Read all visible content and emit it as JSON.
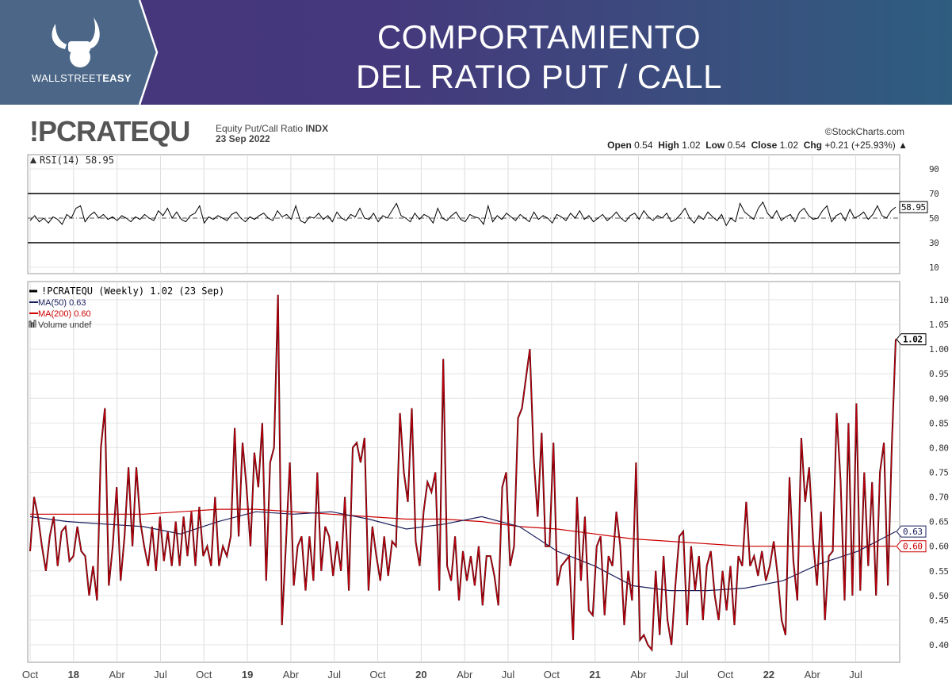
{
  "header": {
    "logo_text_light": "WALLSTREET",
    "logo_text_bold": "EASY",
    "title_line1": "COMPORTAMIENTO",
    "title_line2": "DEL RATIO PUT / CALL"
  },
  "chart_info": {
    "symbol": "!PCRATEQU",
    "description": "Equity Put/Call Ratio",
    "exchange": "INDX",
    "date": "23 Sep 2022",
    "copyright": "©StockCharts.com",
    "open_label": "Open",
    "open": "0.54",
    "high_label": "High",
    "high": "1.02",
    "low_label": "Low",
    "low": "0.54",
    "close_label": "Close",
    "close": "1.02",
    "chg_label": "Chg",
    "chg": "+0.21 (+25.93%)"
  },
  "colors": {
    "price": "#000000",
    "ma50": "#1a1f5c",
    "ma200": "#cc0000",
    "header_left": "#4b6687"
  },
  "chart_data": [
    {
      "type": "line",
      "title": "RSI(14) 58.95",
      "legend": "RSI(14) 58.95",
      "ylim": [
        0,
        100
      ],
      "yticks": [
        10,
        30,
        50,
        70,
        90
      ],
      "reference_lines": [
        30,
        50,
        70
      ],
      "last_value_label": "58.95",
      "last_value": 58.95,
      "values": [
        48,
        52,
        47,
        50,
        46,
        51,
        49,
        45,
        53,
        50,
        58,
        60,
        47,
        52,
        55,
        50,
        53,
        49,
        51,
        48,
        52,
        50,
        47,
        51,
        49,
        53,
        50,
        48,
        56,
        52,
        58,
        50,
        55,
        49,
        47,
        52,
        54,
        60,
        46,
        51,
        49,
        52,
        50,
        48,
        53,
        55,
        50,
        47,
        51,
        49,
        52,
        54,
        50,
        48,
        56,
        51,
        53,
        49,
        60,
        48,
        46,
        51,
        50,
        54,
        49,
        52,
        47,
        55,
        50,
        48,
        53,
        51,
        58,
        50,
        49,
        54,
        47,
        52,
        50,
        56,
        62,
        52,
        50,
        47,
        54,
        49,
        53,
        51,
        46,
        58,
        50,
        48,
        52,
        55,
        49,
        47,
        53,
        51,
        50,
        45,
        60,
        47,
        52,
        49,
        54,
        51,
        48,
        53,
        50,
        47,
        55,
        49,
        52,
        50,
        46,
        53,
        51,
        48,
        54,
        50,
        56,
        49,
        52,
        47,
        50,
        53,
        48,
        51,
        55,
        50,
        47,
        52,
        54,
        49,
        56,
        51,
        48,
        52,
        50,
        54,
        47,
        49,
        53,
        58,
        50,
        46,
        52,
        49,
        55,
        51,
        48,
        53,
        44,
        50,
        47,
        62,
        55,
        52,
        49,
        58,
        63,
        54,
        50,
        56,
        48,
        51,
        53,
        47,
        55,
        58,
        52,
        49,
        50,
        56,
        60,
        47,
        52,
        54,
        48,
        57,
        50,
        52,
        55,
        49,
        53,
        60,
        52,
        50,
        56,
        58.95
      ]
    },
    {
      "type": "line",
      "title": "!PCRATEQU (Weekly) 1.02 (23 Sep)",
      "legend": [
        "!PCRATEQU (Weekly) 1.02 (23 Sep)",
        "MA(50) 0.63",
        "MA(200) 0.60",
        "Volume undef"
      ],
      "ylim": [
        0.38,
        1.13
      ],
      "yticks": [
        "0.40",
        "0.45",
        "0.50",
        "0.55",
        "0.60",
        "0.65",
        "0.70",
        "0.75",
        "0.80",
        "0.85",
        "0.90",
        "0.95",
        "1.00",
        "1.05",
        "1.10"
      ],
      "x_range": [
        "Oct 2017",
        "Sep 2022"
      ],
      "xticks": [
        {
          "label": "Oct",
          "t": 0,
          "bold": false
        },
        {
          "label": "18",
          "t": 0.25,
          "bold": true
        },
        {
          "label": "Abr",
          "t": 0.5,
          "bold": false
        },
        {
          "label": "Jul",
          "t": 0.75,
          "bold": false
        },
        {
          "label": "Oct",
          "t": 1.0,
          "bold": false
        },
        {
          "label": "19",
          "t": 1.25,
          "bold": true
        },
        {
          "label": "Abr",
          "t": 1.5,
          "bold": false
        },
        {
          "label": "Jul",
          "t": 1.75,
          "bold": false
        },
        {
          "label": "Oct",
          "t": 2.0,
          "bold": false
        },
        {
          "label": "20",
          "t": 2.25,
          "bold": true
        },
        {
          "label": "Abr",
          "t": 2.5,
          "bold": false
        },
        {
          "label": "Jul",
          "t": 2.75,
          "bold": false
        },
        {
          "label": "Oct",
          "t": 3.0,
          "bold": false
        },
        {
          "label": "21",
          "t": 3.25,
          "bold": true
        },
        {
          "label": "Abr",
          "t": 3.5,
          "bold": false
        },
        {
          "label": "Jul",
          "t": 3.75,
          "bold": false
        },
        {
          "label": "Oct",
          "t": 4.0,
          "bold": false
        },
        {
          "label": "22",
          "t": 4.25,
          "bold": true
        },
        {
          "label": "Abr",
          "t": 4.5,
          "bold": false
        },
        {
          "label": "Jul",
          "t": 4.75,
          "bold": false
        }
      ],
      "x_span_years": 4.98,
      "last_labels": {
        "price": "1.02",
        "ma50": "0.63",
        "ma200": "0.60"
      },
      "series": [
        {
          "name": "!PCRATEQU",
          "color": "#000000",
          "values": [
            0.59,
            0.7,
            0.66,
            0.6,
            0.55,
            0.62,
            0.66,
            0.56,
            0.63,
            0.64,
            0.57,
            0.58,
            0.64,
            0.59,
            0.58,
            0.5,
            0.56,
            0.49,
            0.8,
            0.88,
            0.52,
            0.6,
            0.72,
            0.53,
            0.62,
            0.76,
            0.6,
            0.76,
            0.65,
            0.6,
            0.56,
            0.64,
            0.55,
            0.66,
            0.57,
            0.63,
            0.56,
            0.65,
            0.56,
            0.66,
            0.58,
            0.67,
            0.56,
            0.68,
            0.58,
            0.6,
            0.56,
            0.7,
            0.56,
            0.6,
            0.58,
            0.62,
            0.84,
            0.62,
            0.81,
            0.72,
            0.6,
            0.79,
            0.72,
            0.85,
            0.53,
            0.77,
            0.8,
            1.11,
            0.44,
            0.6,
            0.77,
            0.52,
            0.6,
            0.62,
            0.51,
            0.62,
            0.53,
            0.75,
            0.55,
            0.64,
            0.62,
            0.54,
            0.61,
            0.55,
            0.7,
            0.51,
            0.8,
            0.81,
            0.77,
            0.82,
            0.51,
            0.64,
            0.58,
            0.53,
            0.62,
            0.54,
            0.61,
            0.6,
            0.87,
            0.75,
            0.69,
            0.88,
            0.61,
            0.56,
            0.67,
            0.73,
            0.71,
            0.75,
            0.51,
            0.98,
            0.56,
            0.53,
            0.62,
            0.49,
            0.59,
            0.53,
            0.58,
            0.52,
            0.6,
            0.48,
            0.58,
            0.58,
            0.54,
            0.48,
            0.72,
            0.75,
            0.56,
            0.6,
            0.86,
            0.88,
            0.94,
            1.0,
            0.78,
            0.66,
            0.83,
            0.6,
            0.6,
            0.81,
            0.52,
            0.56,
            0.57,
            0.58,
            0.41,
            0.7,
            0.53,
            0.66,
            0.47,
            0.46,
            0.6,
            0.62,
            0.46,
            0.58,
            0.56,
            0.67,
            0.6,
            0.44,
            0.55,
            0.49,
            0.77,
            0.41,
            0.42,
            0.4,
            0.39,
            0.55,
            0.42,
            0.58,
            0.45,
            0.4,
            0.52,
            0.62,
            0.63,
            0.44,
            0.6,
            0.51,
            0.58,
            0.45,
            0.56,
            0.59,
            0.5,
            0.45,
            0.55,
            0.47,
            0.56,
            0.44,
            0.58,
            0.56,
            0.69,
            0.56,
            0.58,
            0.54,
            0.59,
            0.53,
            0.56,
            0.61,
            0.54,
            0.45,
            0.42,
            0.74,
            0.57,
            0.49,
            0.82,
            0.69,
            0.76,
            0.61,
            0.52,
            0.67,
            0.45,
            0.58,
            0.59,
            0.87,
            0.73,
            0.49,
            0.85,
            0.5,
            0.89,
            0.51,
            0.75,
            0.56,
            0.73,
            0.5,
            0.75,
            0.81,
            0.52,
            0.8,
            1.02
          ]
        },
        {
          "name": "MA(50)",
          "color": "#1a1f5c",
          "values": [
            0.66,
            0.65,
            0.645,
            0.64,
            0.625,
            0.65,
            0.67,
            0.665,
            0.67,
            0.655,
            0.635,
            0.645,
            0.66,
            0.64,
            0.59,
            0.56,
            0.52,
            0.51,
            0.51,
            0.515,
            0.53,
            0.565,
            0.59,
            0.63
          ]
        },
        {
          "name": "MA(200)",
          "color": "#cc0000",
          "values": [
            0.665,
            0.665,
            0.665,
            0.665,
            0.67,
            0.675,
            0.675,
            0.67,
            0.665,
            0.66,
            0.655,
            0.655,
            0.65,
            0.64,
            0.635,
            0.625,
            0.615,
            0.61,
            0.605,
            0.6,
            0.6,
            0.6,
            0.6,
            0.6
          ]
        }
      ]
    }
  ]
}
